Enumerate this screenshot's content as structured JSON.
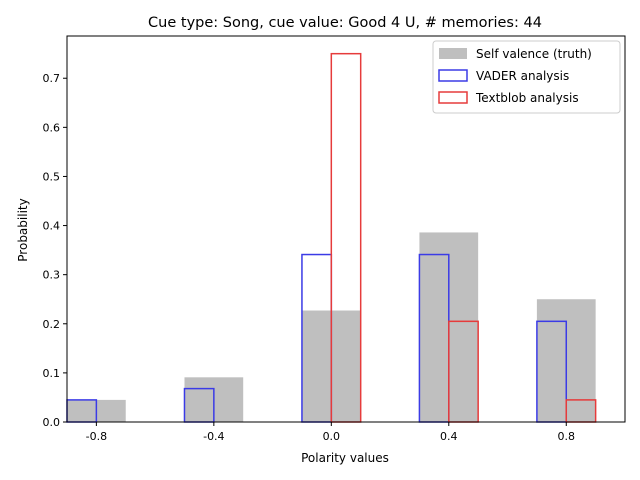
{
  "chart_data": {
    "type": "bar",
    "title": "Cue type: Song, cue value: Good 4 U, # memories: 44",
    "xlabel": "Polarity values",
    "ylabel": "Probability",
    "x_ticks": [
      -0.8,
      -0.4,
      0.0,
      0.4,
      0.8
    ],
    "x_tick_labels": [
      "-0.8",
      "-0.4",
      "0.0",
      "0.4",
      "0.8"
    ],
    "y_ticks": [
      0.0,
      0.1,
      0.2,
      0.3,
      0.4,
      0.5,
      0.6,
      0.7
    ],
    "y_tick_labels": [
      "0.0",
      "0.1",
      "0.2",
      "0.3",
      "0.4",
      "0.5",
      "0.6",
      "0.7"
    ],
    "xlim": [
      -0.9,
      1.0
    ],
    "ylim": [
      0,
      0.786
    ],
    "legend_position": "top-right",
    "series": [
      {
        "name": "Self valence (truth)",
        "style": "filled",
        "color": "#bfbfbf",
        "bars": [
          {
            "x0": -0.9,
            "x1": -0.7,
            "value": 0.045
          },
          {
            "x0": -0.5,
            "x1": -0.3,
            "value": 0.091
          },
          {
            "x0": -0.1,
            "x1": 0.1,
            "value": 0.227
          },
          {
            "x0": 0.3,
            "x1": 0.5,
            "value": 0.386
          },
          {
            "x0": 0.7,
            "x1": 0.9,
            "value": 0.25
          }
        ]
      },
      {
        "name": "VADER analysis",
        "style": "outline",
        "color": "#3b3be6",
        "bars": [
          {
            "x0": -0.9,
            "x1": -0.8,
            "value": 0.045
          },
          {
            "x0": -0.5,
            "x1": -0.4,
            "value": 0.068
          },
          {
            "x0": -0.1,
            "x1": 0.0,
            "value": 0.341
          },
          {
            "x0": 0.3,
            "x1": 0.4,
            "value": 0.341
          },
          {
            "x0": 0.7,
            "x1": 0.8,
            "value": 0.205
          }
        ]
      },
      {
        "name": "Textblob analysis",
        "style": "outline",
        "color": "#e63b3b",
        "bars": [
          {
            "x0": -0.8,
            "x1": -0.7,
            "value": 0.0
          },
          {
            "x0": -0.4,
            "x1": -0.3,
            "value": 0.0
          },
          {
            "x0": 0.0,
            "x1": 0.1,
            "value": 0.75
          },
          {
            "x0": 0.4,
            "x1": 0.5,
            "value": 0.205
          },
          {
            "x0": 0.8,
            "x1": 0.9,
            "value": 0.045
          }
        ]
      }
    ]
  }
}
